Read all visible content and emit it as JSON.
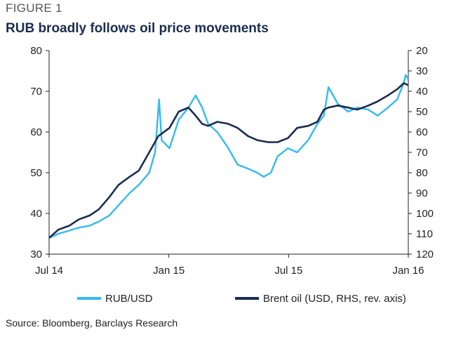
{
  "figure": {
    "label": "FIGURE 1",
    "title": "RUB broadly follows oil price movements",
    "source": "Source: Bloomberg, Barclays Research"
  },
  "colors": {
    "rub": "#33bbee",
    "brent": "#1a2d4f",
    "axis": "#222222"
  },
  "chart_data": {
    "type": "line",
    "title": "RUB broadly follows oil price movements",
    "x_ticks": [
      "Jul 14",
      "Jan 15",
      "Jul 15",
      "Jan 16"
    ],
    "x_range": [
      "2014-07-01",
      "2016-01-01"
    ],
    "left_axis": {
      "ticks": [
        30,
        40,
        50,
        60,
        70,
        80
      ],
      "range": [
        30,
        80
      ]
    },
    "right_axis": {
      "ticks": [
        20,
        30,
        40,
        50,
        60,
        70,
        80,
        90,
        100,
        110,
        120
      ],
      "range": [
        120,
        20
      ],
      "reversed": true
    },
    "legend_position": "bottom",
    "grid": false,
    "series": [
      {
        "name": "RUB/USD",
        "axis": "left",
        "color": "#33bbee",
        "x": [
          "2014-07-01",
          "2014-07-15",
          "2014-08-01",
          "2014-08-15",
          "2014-09-01",
          "2014-09-15",
          "2014-10-01",
          "2014-10-15",
          "2014-11-01",
          "2014-11-15",
          "2014-12-01",
          "2014-12-10",
          "2014-12-16",
          "2014-12-20",
          "2015-01-01",
          "2015-01-15",
          "2015-01-30",
          "2015-02-10",
          "2015-02-20",
          "2015-03-01",
          "2015-03-15",
          "2015-04-01",
          "2015-04-15",
          "2015-05-01",
          "2015-05-15",
          "2015-05-25",
          "2015-06-05",
          "2015-06-15",
          "2015-07-01",
          "2015-07-15",
          "2015-08-01",
          "2015-08-15",
          "2015-08-25",
          "2015-09-01",
          "2015-09-15",
          "2015-10-01",
          "2015-10-15",
          "2015-11-01",
          "2015-11-15",
          "2015-12-01",
          "2015-12-15",
          "2015-12-25",
          "2015-12-28",
          "2016-01-01"
        ],
        "y": [
          34,
          35,
          35.8,
          36.5,
          37,
          38,
          39.5,
          42,
          45,
          47,
          50,
          55,
          68,
          58,
          56,
          63,
          66,
          69,
          66,
          62,
          60,
          56,
          52,
          51,
          50,
          49,
          50,
          54,
          56,
          55,
          58,
          62,
          64,
          71,
          67,
          65,
          66,
          65.5,
          64,
          66,
          68,
          72,
          74,
          73
        ]
      },
      {
        "name": "Brent oil (USD, RHS, rev. axis)",
        "axis": "right",
        "color": "#1a2d4f",
        "x": [
          "2014-07-01",
          "2014-07-15",
          "2014-08-01",
          "2014-08-15",
          "2014-09-01",
          "2014-09-15",
          "2014-10-01",
          "2014-10-15",
          "2014-11-01",
          "2014-11-15",
          "2014-12-01",
          "2014-12-15",
          "2015-01-01",
          "2015-01-15",
          "2015-01-30",
          "2015-02-10",
          "2015-02-20",
          "2015-03-01",
          "2015-03-15",
          "2015-04-01",
          "2015-04-15",
          "2015-05-01",
          "2015-05-15",
          "2015-06-01",
          "2015-06-15",
          "2015-07-01",
          "2015-07-15",
          "2015-08-01",
          "2015-08-15",
          "2015-08-25",
          "2015-09-01",
          "2015-09-15",
          "2015-10-01",
          "2015-10-15",
          "2015-11-01",
          "2015-11-15",
          "2015-12-01",
          "2015-12-15",
          "2015-12-25",
          "2016-01-01"
        ],
        "y": [
          112,
          108,
          106,
          103,
          101,
          98,
          92,
          86,
          82,
          79,
          70,
          62,
          58,
          50,
          48,
          52,
          56,
          57,
          55,
          56,
          58,
          62,
          64,
          65,
          65,
          63,
          58,
          57,
          55,
          49,
          48,
          47,
          48,
          49,
          47,
          45,
          42,
          39,
          36,
          37
        ]
      }
    ]
  }
}
